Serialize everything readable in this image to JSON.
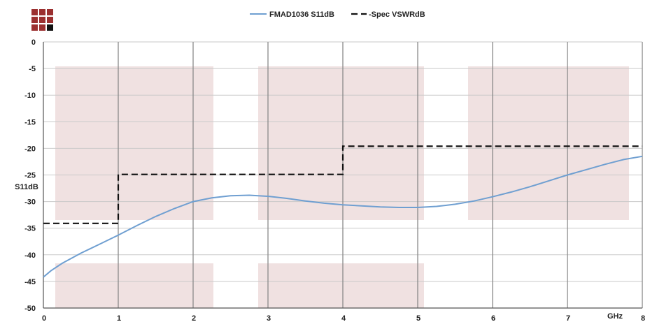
{
  "chart_data": {
    "type": "line",
    "title": "",
    "xlabel": "GHz",
    "ylabel": "S11dB",
    "xlim": [
      0,
      8
    ],
    "ylim": [
      -50,
      0
    ],
    "x_ticks": [
      0,
      1,
      2,
      3,
      4,
      5,
      6,
      7,
      8
    ],
    "y_ticks": [
      0,
      -5,
      -10,
      -15,
      -20,
      -25,
      -30,
      -35,
      -40,
      -45,
      -50
    ],
    "grid": true,
    "legend_position": "top",
    "series": [
      {
        "name": "FMAD1036 S11dB",
        "color": "#6f9fd1",
        "style": "solid",
        "x": [
          0,
          0.1,
          0.25,
          0.5,
          0.75,
          1.0,
          1.25,
          1.5,
          1.75,
          2.0,
          2.25,
          2.5,
          2.75,
          3.0,
          3.25,
          3.5,
          3.75,
          4.0,
          4.25,
          4.5,
          4.75,
          5.0,
          5.25,
          5.5,
          5.75,
          6.0,
          6.25,
          6.5,
          6.75,
          7.0,
          7.25,
          7.5,
          7.75,
          8.0
        ],
        "values": [
          -44.2,
          -43.0,
          -41.6,
          -39.7,
          -38.0,
          -36.3,
          -34.5,
          -32.8,
          -31.3,
          -30.0,
          -29.3,
          -28.9,
          -28.8,
          -29.0,
          -29.4,
          -29.9,
          -30.3,
          -30.6,
          -30.8,
          -31.0,
          -31.1,
          -31.1,
          -30.9,
          -30.5,
          -29.9,
          -29.1,
          -28.2,
          -27.2,
          -26.1,
          -25.0,
          -24.0,
          -23.0,
          -22.1,
          -21.5
        ]
      },
      {
        "name": "Spec VSWRdB",
        "color": "#111111",
        "style": "dashed",
        "x": [
          0,
          1.0,
          1.0,
          4.0,
          4.0,
          8.0
        ],
        "values": [
          -34.1,
          -34.1,
          -24.9,
          -24.9,
          -19.6,
          -19.6
        ]
      }
    ],
    "legend": [
      "FMAD1036 S11dB",
      "-Spec VSWRdB"
    ]
  },
  "logo": {
    "name": "company-logo",
    "colors": {
      "red": "#9b2f2f",
      "black": "#111111"
    }
  },
  "background_panels_color": "#f0e1e1"
}
